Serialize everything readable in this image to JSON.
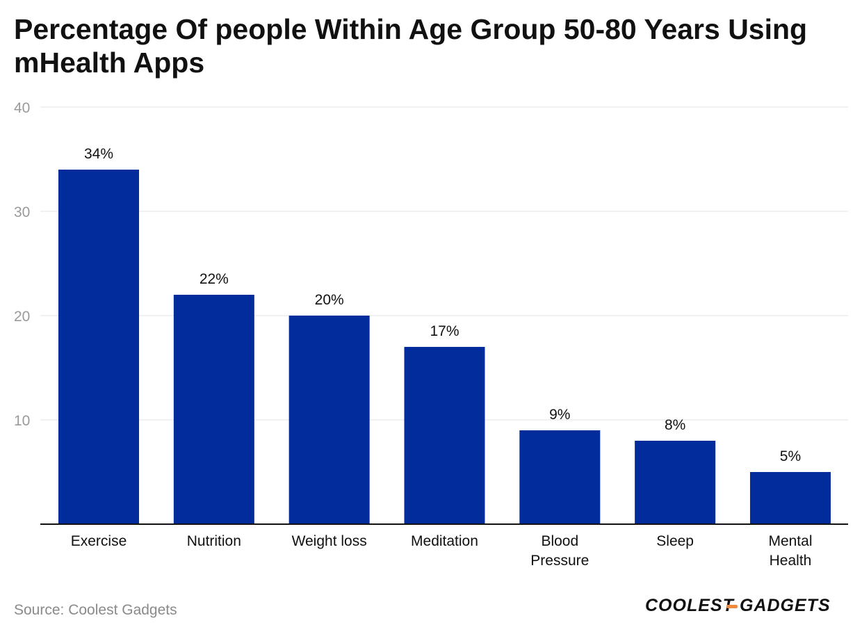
{
  "title": "Percentage Of people Within Age Group 50-80 Years Using mHealth Apps",
  "source": "Source: Coolest Gadgets",
  "logo": {
    "part1": "COOLEST",
    "part2": "GADGETS"
  },
  "colors": {
    "bar": "#022c9c",
    "grid": "#e3e3e3",
    "axis": "#111111",
    "tick": "#9a9a9a",
    "logo_accent": "#f08a3c"
  },
  "chart_data": {
    "type": "bar",
    "title": "Percentage Of people Within Age Group 50-80 Years Using mHealth Apps",
    "xlabel": "",
    "ylabel": "",
    "ylim": [
      0,
      40
    ],
    "yticks": [
      10,
      20,
      30,
      40
    ],
    "grid": true,
    "categories": [
      [
        "Exercise"
      ],
      [
        "Nutrition"
      ],
      [
        "Weight loss"
      ],
      [
        "Meditation"
      ],
      [
        "Blood",
        "Pressure"
      ],
      [
        "Sleep"
      ],
      [
        "Mental",
        "Health"
      ]
    ],
    "values": [
      34,
      22,
      20,
      17,
      9,
      8,
      5
    ],
    "value_labels": [
      "34%",
      "22%",
      "20%",
      "17%",
      "9%",
      "8%",
      "5%"
    ]
  }
}
